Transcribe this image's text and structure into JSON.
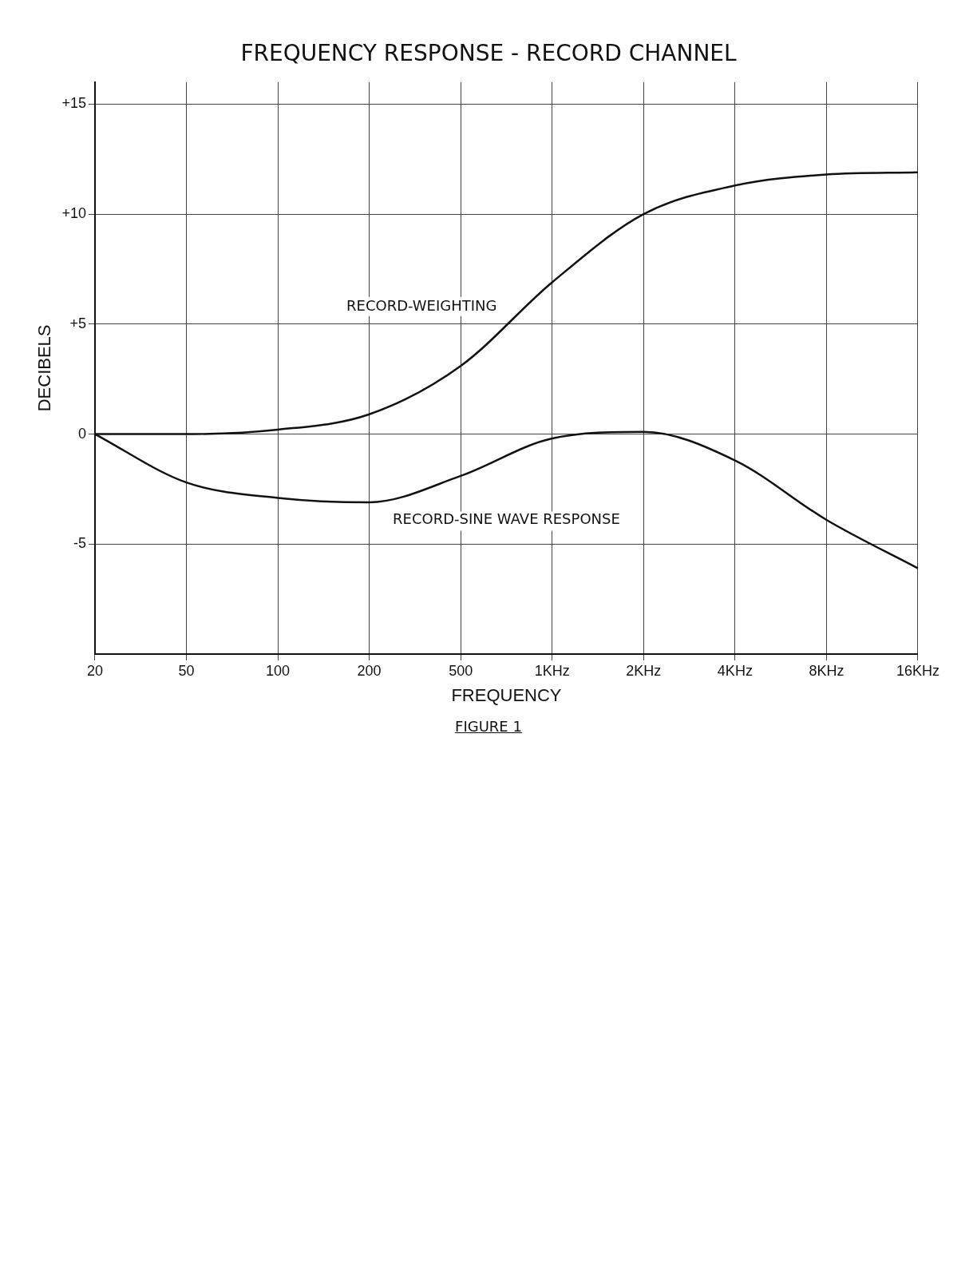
{
  "chart_data": {
    "type": "line",
    "title": "FREQUENCY RESPONSE - RECORD CHANNEL",
    "xlabel": "FREQUENCY",
    "ylabel": "DECIBELS",
    "annotations": [
      "FIGURE 1"
    ],
    "categories": [
      "20",
      "50",
      "100",
      "200",
      "500",
      "1KHz",
      "2KHz",
      "4KHz",
      "8KHz",
      "16KHz"
    ],
    "series": [
      {
        "name": "RECORD-WEIGHTING",
        "color": "#111111",
        "values": [
          0,
          0,
          0.2,
          0.9,
          3.1,
          6.9,
          10,
          11.3,
          11.8,
          11.9
        ]
      },
      {
        "name": "RECORD-SINE WAVE RESPONSE",
        "color": "#111111",
        "values": [
          0,
          -2.2,
          -2.9,
          -3.1,
          -1.9,
          -0.2,
          0.1,
          -1.2,
          -3.9,
          -6.1
        ]
      }
    ],
    "ylim": [
      -10,
      16
    ],
    "yticks": [
      {
        "value": 15,
        "label": "+15"
      },
      {
        "value": 10,
        "label": "+10"
      },
      {
        "value": 5,
        "label": "+5"
      },
      0,
      -5
    ],
    "grid": true,
    "legend": false,
    "marker": "none",
    "line_style": "solid"
  }
}
